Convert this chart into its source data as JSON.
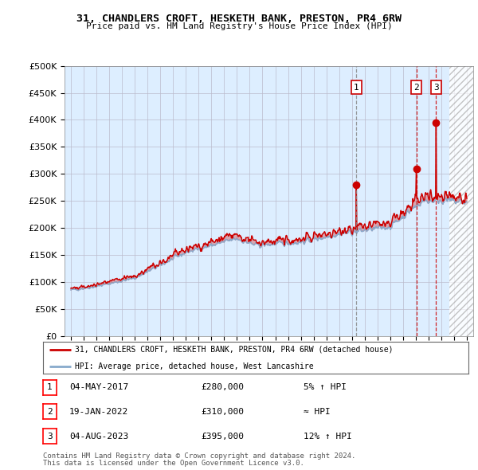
{
  "title": "31, CHANDLERS CROFT, HESKETH BANK, PRESTON, PR4 6RW",
  "subtitle": "Price paid vs. HM Land Registry's House Price Index (HPI)",
  "legend_line1": "31, CHANDLERS CROFT, HESKETH BANK, PRESTON, PR4 6RW (detached house)",
  "legend_line2": "HPI: Average price, detached house, West Lancashire",
  "transactions": [
    {
      "num": 1,
      "date": "04-MAY-2017",
      "price": 280000,
      "rel": "5% ↑ HPI",
      "year": 2017.35
    },
    {
      "num": 2,
      "date": "19-JAN-2022",
      "price": 310000,
      "rel": "≈ HPI",
      "year": 2022.05
    },
    {
      "num": 3,
      "date": "04-AUG-2023",
      "price": 395000,
      "rel": "12% ↑ HPI",
      "year": 2023.59
    }
  ],
  "footer_line1": "Contains HM Land Registry data © Crown copyright and database right 2024.",
  "footer_line2": "This data is licensed under the Open Government Licence v3.0.",
  "ylim": [
    0,
    500000
  ],
  "yticks": [
    0,
    50000,
    100000,
    150000,
    200000,
    250000,
    300000,
    350000,
    400000,
    450000,
    500000
  ],
  "red_color": "#cc0000",
  "blue_color": "#88aacc",
  "bg_color": "#ddeeff",
  "background": "#ffffff",
  "grid_color": "#bbbbcc",
  "hpi_base": 85000,
  "xmin": 1994.5,
  "xmax": 2026.5,
  "future_start": 2024.6
}
